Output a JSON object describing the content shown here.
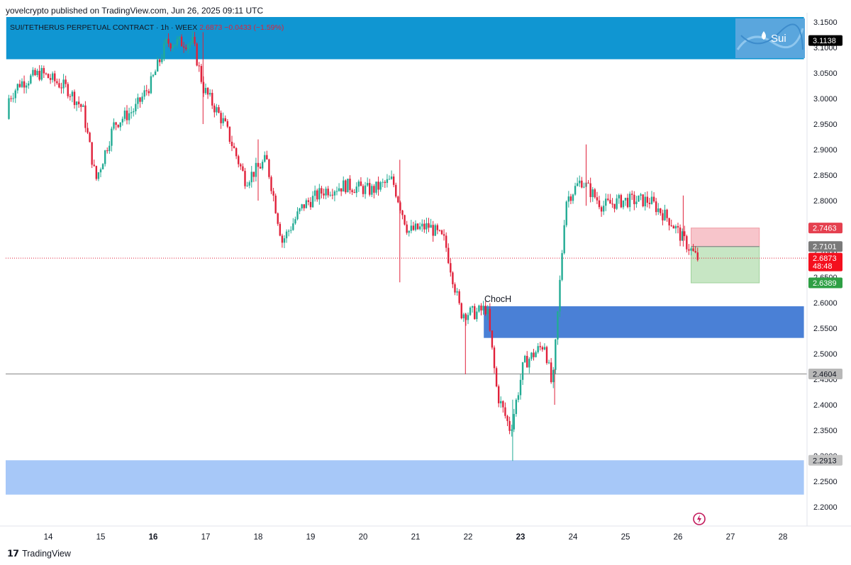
{
  "header": {
    "publisher": "yovelcrypto published on TradingView.com, Jun 26, 2025 09:11 UTC"
  },
  "legend": {
    "symbol": "SUI/TETHERUS PERPETUAL CONTRACT · 1h · WEEX",
    "price": "2.6873",
    "change": "−0.0433 (−1.59%)"
  },
  "logo_badge": {
    "text": "Sui"
  },
  "annotation": {
    "text": "ChocH"
  },
  "footer": {
    "brand": "TradingView"
  },
  "colors": {
    "up": "#22ab94",
    "down": "#e0213a",
    "upper_zone": "#1096d2",
    "mid_zone": "#4a80d6",
    "lower_zone": "#a7c8f8",
    "stop_zone": "#f7c5cb",
    "target_zone": "#c7e6c4"
  },
  "price_tags": [
    {
      "label": "3.1138",
      "value": 3.1138,
      "bg": "#000000",
      "fg": "#ffffff"
    },
    {
      "label": "2.7463",
      "value": 2.7463,
      "bg": "#e5404f",
      "fg": "#ffffff"
    },
    {
      "label": "2.7101",
      "value": 2.7101,
      "bg": "#7a7a7a",
      "fg": "#ffffff"
    },
    {
      "label": "2.6873",
      "value": 2.6873,
      "bg": "#f4101e",
      "fg": "#ffffff",
      "sub": "48:48"
    },
    {
      "label": "2.6389",
      "value": 2.6389,
      "bg": "#2e9f44",
      "fg": "#ffffff"
    },
    {
      "label": "2.4604",
      "value": 2.4604,
      "bg": "#b8b8b8",
      "fg": "#131722"
    },
    {
      "label": "2.2913",
      "value": 2.2913,
      "bg": "#c4c4c4",
      "fg": "#131722"
    }
  ],
  "chart_data": {
    "type": "candlestick",
    "title": "SUI/TETHERUS PERPETUAL CONTRACT · 1h · WEEX",
    "y_axis": {
      "ticks": [
        "3.1500",
        "3.1000",
        "3.0500",
        "3.0000",
        "2.9500",
        "2.9000",
        "2.8500",
        "2.8000",
        "2.7500",
        "2.7000",
        "2.6500",
        "2.6000",
        "2.5500",
        "2.5000",
        "2.4500",
        "2.4000",
        "2.3500",
        "2.3000",
        "2.2500",
        "2.2000"
      ],
      "ylim": [
        2.18,
        3.17
      ]
    },
    "x_axis": {
      "ticks": [
        "14",
        "15",
        "16",
        "17",
        "18",
        "19",
        "20",
        "21",
        "22",
        "23",
        "24",
        "25",
        "26",
        "27",
        "28"
      ],
      "bold": [
        "16",
        "23"
      ]
    },
    "waypoints": [
      {
        "day": 13.0,
        "price": 2.96
      },
      {
        "day": 13.5,
        "price": 3.03
      },
      {
        "day": 13.9,
        "price": 3.05
      },
      {
        "day": 14.4,
        "price": 3.02
      },
      {
        "day": 14.7,
        "price": 2.98
      },
      {
        "day": 14.95,
        "price": 2.84
      },
      {
        "day": 15.3,
        "price": 2.95
      },
      {
        "day": 15.7,
        "price": 2.98
      },
      {
        "day": 16.0,
        "price": 3.03
      },
      {
        "day": 16.3,
        "price": 3.11
      },
      {
        "day": 16.8,
        "price": 3.11
      },
      {
        "day": 17.0,
        "price": 3.02
      },
      {
        "day": 17.4,
        "price": 2.95
      },
      {
        "day": 17.8,
        "price": 2.84
      },
      {
        "day": 18.2,
        "price": 2.88
      },
      {
        "day": 18.5,
        "price": 2.72
      },
      {
        "day": 18.9,
        "price": 2.79
      },
      {
        "day": 19.3,
        "price": 2.82
      },
      {
        "day": 19.7,
        "price": 2.83
      },
      {
        "day": 20.2,
        "price": 2.82
      },
      {
        "day": 20.6,
        "price": 2.84
      },
      {
        "day": 20.9,
        "price": 2.74
      },
      {
        "day": 21.3,
        "price": 2.75
      },
      {
        "day": 21.6,
        "price": 2.72
      },
      {
        "day": 21.9,
        "price": 2.58
      },
      {
        "day": 22.2,
        "price": 2.58
      },
      {
        "day": 22.4,
        "price": 2.59
      },
      {
        "day": 22.6,
        "price": 2.42
      },
      {
        "day": 22.85,
        "price": 2.35
      },
      {
        "day": 23.1,
        "price": 2.48
      },
      {
        "day": 23.5,
        "price": 2.52
      },
      {
        "day": 23.65,
        "price": 2.43
      },
      {
        "day": 23.9,
        "price": 2.8
      },
      {
        "day": 24.2,
        "price": 2.84
      },
      {
        "day": 24.6,
        "price": 2.79
      },
      {
        "day": 25.0,
        "price": 2.8
      },
      {
        "day": 25.5,
        "price": 2.8
      },
      {
        "day": 25.9,
        "price": 2.76
      },
      {
        "day": 26.1,
        "price": 2.73
      },
      {
        "day": 26.4,
        "price": 2.6873
      }
    ],
    "zones": [
      {
        "name": "upper-supply-zone",
        "from_day": 13.2,
        "to_day": 28.4,
        "top": 3.17,
        "bottom": 3.077
      },
      {
        "name": "choch-demand-zone",
        "from_day": 22.3,
        "to_day": 28.4,
        "top": 2.593,
        "bottom": 2.531
      },
      {
        "name": "lower-demand-zone",
        "from_day": 12.95,
        "to_day": 28.4,
        "top": 2.2913,
        "bottom": 2.224
      },
      {
        "name": "stop-zone",
        "from_day": 26.25,
        "to_day": 27.55,
        "top": 2.7463,
        "bottom": 2.7101
      },
      {
        "name": "target-zone",
        "from_day": 26.25,
        "to_day": 27.55,
        "top": 2.7101,
        "bottom": 2.6389
      }
    ],
    "lines": [
      {
        "name": "horizontal-support-line",
        "value": 2.4604
      },
      {
        "name": "current-price-line",
        "value": 2.6873
      }
    ]
  }
}
